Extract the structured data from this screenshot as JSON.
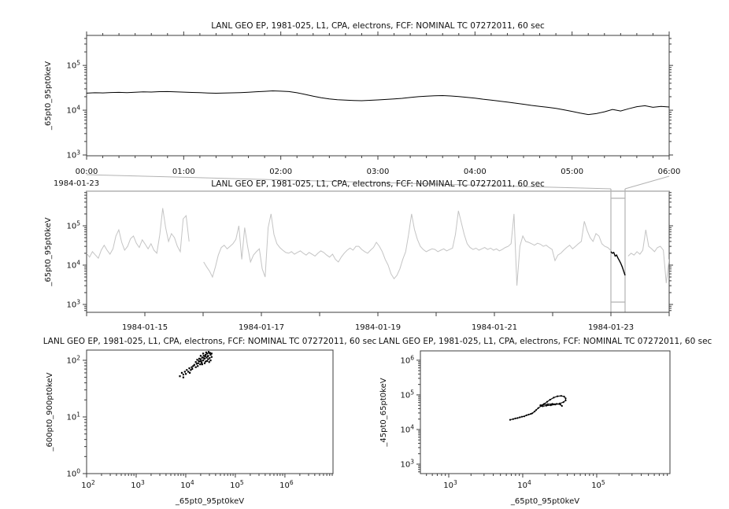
{
  "misc": {
    "pow_base": "10",
    "background": "#ffffff"
  },
  "colors": {
    "data": "#000000",
    "muted_series": "#c4c4c4",
    "context_box": "#b2b2b2",
    "frame": "#3c3c3c",
    "text": "#111111"
  },
  "chart_data": [
    {
      "id": "zoom-timeseries",
      "type": "line",
      "title": "LANL GEO EP, 1981-025, L1, CPA, electrons, FCF: NOMINAL TC 07272011, 60 sec",
      "ylabel": "_65pt0_95pt0keV",
      "xlabel": "",
      "x_unit": "time of day",
      "x_range_hours": [
        0,
        6
      ],
      "x_tick_labels": [
        "00:00",
        "01:00",
        "02:00",
        "03:00",
        "04:00",
        "05:00",
        "06:00"
      ],
      "x_context_date": "1984-01-23",
      "y_scale": "log",
      "y_range_exp": [
        2.9825,
        5.67
      ],
      "y_tick_exps": [
        3,
        4,
        5
      ],
      "values_k": [
        24.0,
        24.5,
        24.3,
        24.8,
        25.0,
        24.7,
        25.2,
        25.6,
        25.4,
        25.9,
        26.1,
        25.7,
        25.3,
        24.9,
        24.6,
        24.2,
        23.9,
        24.1,
        24.4,
        24.7,
        25.2,
        25.8,
        26.4,
        27.0,
        26.6,
        26.0,
        24.5,
        22.5,
        20.5,
        19.0,
        17.8,
        17.2,
        16.8,
        16.5,
        16.3,
        16.6,
        17.0,
        17.4,
        17.8,
        18.4,
        19.2,
        20.0,
        20.6,
        21.0,
        21.2,
        20.8,
        20.2,
        19.4,
        18.6,
        17.6,
        16.8,
        16.0,
        15.2,
        14.4,
        13.6,
        12.8,
        12.2,
        11.6,
        11.0,
        10.2,
        9.4,
        8.6,
        8.0,
        8.4,
        9.2,
        10.4,
        9.6,
        10.8,
        12.0,
        12.6,
        11.6,
        12.2,
        11.8
      ]
    },
    {
      "id": "overview-timeseries",
      "type": "line",
      "title": "LANL GEO EP, 1981-025, L1, CPA, electrons, FCF: NOMINAL TC 07272011, 60 sec",
      "ylabel": "_65pt0_95pt0keV",
      "xlabel": "",
      "x_range_days": [
        0,
        10
      ],
      "x_start_date": "1984-01-14",
      "x_tick_label_days": [
        1,
        3,
        5,
        7,
        9
      ],
      "x_tick_labels": [
        "1984-01-15",
        "1984-01-17",
        "1984-01-19",
        "1984-01-21",
        "1984-01-23"
      ],
      "y_scale": "log",
      "y_range_exp": [
        2.8,
        5.88
      ],
      "y_tick_exps": [
        3,
        4,
        5
      ],
      "values_k": [
        20,
        16,
        22,
        18,
        15,
        24,
        32,
        24,
        19,
        26,
        55,
        79,
        38,
        24,
        30,
        47,
        55,
        36,
        28,
        44,
        34,
        26,
        35,
        24,
        20,
        60,
        280,
        90,
        40,
        63,
        50,
        30,
        22,
        150,
        180,
        40,
        null,
        null,
        null,
        null,
        12,
        9,
        7,
        5,
        9,
        18,
        28,
        32,
        26,
        30,
        35,
        45,
        100,
        14,
        90,
        30,
        12,
        18,
        22,
        26,
        8,
        5,
        90,
        200,
        60,
        35,
        28,
        24,
        21,
        20,
        22,
        19,
        21,
        23,
        20,
        18,
        21,
        19,
        17,
        20,
        23,
        21,
        18,
        16,
        19,
        14,
        12,
        16,
        20,
        24,
        27,
        24,
        30,
        30,
        25,
        22,
        20,
        24,
        28,
        38,
        30,
        22,
        14,
        10,
        6,
        4.5,
        5.5,
        8,
        14,
        22,
        60,
        200,
        80,
        45,
        30,
        25,
        22,
        24,
        26,
        25,
        22,
        24,
        26,
        23,
        25,
        27,
        60,
        240,
        120,
        60,
        35,
        28,
        25,
        27,
        24,
        26,
        28,
        25,
        27,
        24,
        26,
        23,
        25,
        28,
        30,
        35,
        200,
        3,
        30,
        55,
        40,
        38,
        35,
        32,
        36,
        34,
        30,
        32,
        28,
        25,
        13,
        18,
        20,
        24,
        28,
        32,
        26,
        30,
        35,
        40,
        130,
        75,
        50,
        40,
        63,
        55,
        35,
        30,
        28,
        24,
        null,
        null,
        null,
        null,
        null,
        17,
        20,
        18,
        22,
        19,
        24,
        79,
        30,
        26,
        22,
        28,
        30,
        24,
        3.5,
        14
      ],
      "highlight_x_day_range": [
        9.0,
        9.243
      ],
      "highlight_values_k": [
        22,
        20,
        21,
        17,
        18,
        15,
        13,
        11,
        9,
        7,
        5.5
      ]
    },
    {
      "id": "scatter-600-900",
      "type": "scatter",
      "title": "LANL GEO EP, 1981-025, L1, CPA, electrons, FCF: NOMINAL TC 07272011, 60 sec",
      "xlabel": "_65pt0_95pt0keV",
      "ylabel": "_600pt0_900pt0keV",
      "x_scale": "log",
      "y_scale": "log",
      "x_range_exp": [
        2,
        6.97
      ],
      "y_range_exp": [
        0,
        2.18
      ],
      "x_tick_exps": [
        2,
        3,
        4,
        5,
        6
      ],
      "y_tick_exps": [
        0,
        1,
        2
      ],
      "points_log10": [
        [
          3.88,
          1.72
        ],
        [
          3.92,
          1.78
        ],
        [
          3.95,
          1.75
        ],
        [
          3.98,
          1.8
        ],
        [
          4.0,
          1.76
        ],
        [
          4.02,
          1.83
        ],
        [
          4.05,
          1.8
        ],
        [
          4.07,
          1.86
        ],
        [
          4.1,
          1.83
        ],
        [
          4.12,
          1.88
        ],
        [
          4.15,
          1.9
        ],
        [
          4.13,
          1.85
        ],
        [
          4.17,
          1.92
        ],
        [
          4.08,
          1.78
        ],
        [
          3.95,
          1.7
        ],
        [
          4.2,
          1.88
        ],
        [
          4.25,
          1.95
        ],
        [
          4.28,
          1.98
        ],
        [
          4.3,
          2.02
        ],
        [
          4.32,
          1.96
        ],
        [
          4.33,
          2.05
        ],
        [
          4.35,
          2.0
        ],
        [
          4.36,
          2.08
        ],
        [
          4.38,
          2.03
        ],
        [
          4.4,
          2.1
        ],
        [
          4.4,
          1.98
        ],
        [
          4.42,
          2.05
        ],
        [
          4.43,
          2.12
        ],
        [
          4.45,
          2.02
        ],
        [
          4.45,
          2.08
        ],
        [
          4.47,
          2.13
        ],
        [
          4.48,
          2.04
        ],
        [
          4.5,
          2.1
        ],
        [
          4.5,
          2.0
        ],
        [
          4.52,
          2.06
        ],
        [
          4.47,
          1.97
        ],
        [
          4.43,
          1.99
        ],
        [
          4.38,
          1.95
        ],
        [
          4.35,
          2.12
        ],
        [
          4.3,
          2.08
        ],
        [
          4.27,
          2.03
        ],
        [
          4.24,
          1.9
        ],
        [
          4.33,
          1.93
        ],
        [
          4.41,
          2.14
        ],
        [
          4.36,
          2.04
        ],
        [
          4.44,
          2.07
        ],
        [
          4.49,
          2.13
        ],
        [
          4.52,
          2.12
        ],
        [
          4.46,
          2.15
        ],
        [
          4.39,
          2.07
        ],
        [
          4.31,
          1.99
        ],
        [
          4.29,
          1.93
        ],
        [
          4.26,
          1.99
        ],
        [
          4.22,
          1.94
        ],
        [
          4.2,
          1.97
        ],
        [
          4.23,
          2.01
        ]
      ]
    },
    {
      "id": "scatter-45-65",
      "type": "line",
      "title": "LANL GEO EP, 1981-025, L1, CPA, electrons, FCF: NOMINAL TC 07272011, 60 sec",
      "xlabel": "_65pt0_95pt0keV",
      "ylabel": "_45pt0_65pt0keV",
      "x_scale": "log",
      "y_scale": "log",
      "x_range_exp": [
        2.617,
        5.99
      ],
      "y_range_exp": [
        2.727,
        6.27
      ],
      "x_tick_exps": [
        3,
        4,
        5
      ],
      "y_tick_exps": [
        3,
        4,
        5,
        6
      ],
      "points_log10": [
        [
          3.83,
          4.28
        ],
        [
          3.87,
          4.3
        ],
        [
          3.9,
          4.32
        ],
        [
          3.93,
          4.33
        ],
        [
          3.96,
          4.35
        ],
        [
          3.99,
          4.37
        ],
        [
          4.02,
          4.38
        ],
        [
          4.05,
          4.41
        ],
        [
          4.08,
          4.43
        ],
        [
          4.11,
          4.45
        ],
        [
          4.13,
          4.47
        ],
        [
          4.16,
          4.52
        ],
        [
          4.18,
          4.56
        ],
        [
          4.21,
          4.62
        ],
        [
          4.25,
          4.68
        ],
        [
          4.29,
          4.74
        ],
        [
          4.33,
          4.8
        ],
        [
          4.37,
          4.86
        ],
        [
          4.42,
          4.92
        ],
        [
          4.47,
          4.96
        ],
        [
          4.52,
          4.97
        ],
        [
          4.56,
          4.95
        ],
        [
          4.58,
          4.9
        ],
        [
          4.58,
          4.84
        ],
        [
          4.55,
          4.79
        ],
        [
          4.5,
          4.75
        ],
        [
          4.44,
          4.72
        ],
        [
          4.38,
          4.7
        ],
        [
          4.32,
          4.69
        ],
        [
          4.27,
          4.67
        ],
        [
          4.24,
          4.7
        ],
        [
          4.28,
          4.72
        ],
        [
          4.34,
          4.73
        ],
        [
          4.4,
          4.74
        ],
        [
          4.46,
          4.74
        ],
        [
          4.51,
          4.72
        ],
        [
          4.53,
          4.68
        ]
      ]
    }
  ]
}
